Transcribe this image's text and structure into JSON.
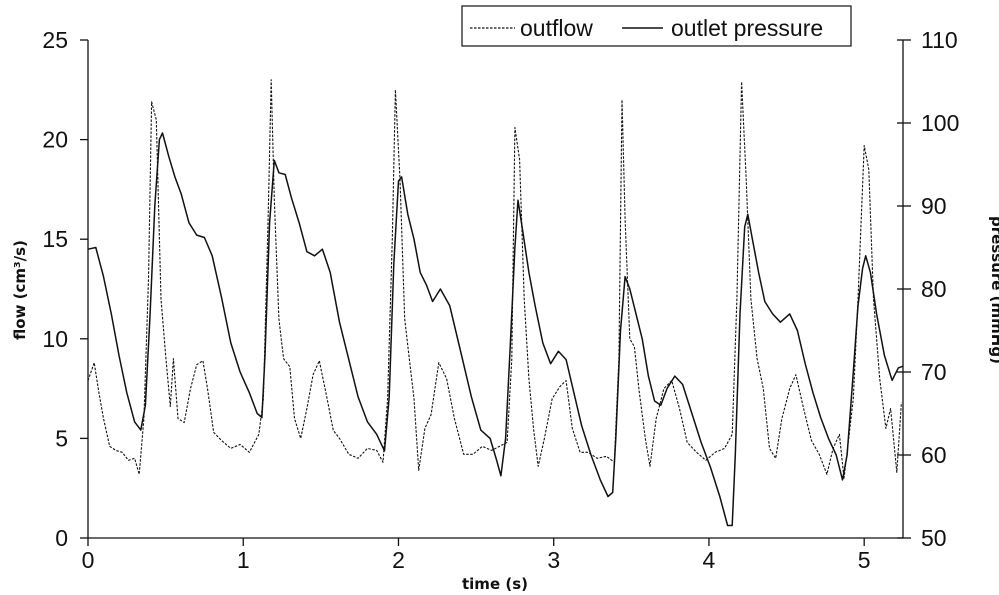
{
  "chart_data": {
    "type": "line",
    "xlabel": "time (s)",
    "ylabel_left": "flow (cm³/s)",
    "ylabel_right": "pressure (mmHg)",
    "xlim": [
      0,
      5.25
    ],
    "ylim_left": [
      0,
      25
    ],
    "ylim_right": [
      50,
      110
    ],
    "x_ticks": [
      "0",
      "1",
      "2",
      "3",
      "4",
      "5"
    ],
    "y_left_ticks": [
      "0",
      "5",
      "10",
      "15",
      "20",
      "25"
    ],
    "y_right_ticks": [
      "50",
      "60",
      "70",
      "80",
      "90",
      "100",
      "110"
    ],
    "grid": false,
    "legend_position": "top-right",
    "series": [
      {
        "name": "outflow",
        "axis": "left",
        "style": "dashed",
        "color": "#111111",
        "points": [
          [
            0.0,
            7.9
          ],
          [
            0.04,
            8.8
          ],
          [
            0.07,
            7.3
          ],
          [
            0.1,
            6.0
          ],
          [
            0.14,
            4.6
          ],
          [
            0.18,
            4.4
          ],
          [
            0.22,
            4.3
          ],
          [
            0.26,
            3.9
          ],
          [
            0.3,
            4.0
          ],
          [
            0.33,
            3.2
          ],
          [
            0.36,
            6.0
          ],
          [
            0.39,
            13.0
          ],
          [
            0.41,
            21.9
          ],
          [
            0.44,
            21.0
          ],
          [
            0.47,
            12.0
          ],
          [
            0.5,
            9.2
          ],
          [
            0.53,
            6.6
          ],
          [
            0.55,
            9.0
          ],
          [
            0.58,
            6.0
          ],
          [
            0.62,
            5.8
          ],
          [
            0.66,
            7.5
          ],
          [
            0.7,
            8.7
          ],
          [
            0.74,
            8.9
          ],
          [
            0.77,
            7.5
          ],
          [
            0.81,
            5.3
          ],
          [
            0.86,
            4.9
          ],
          [
            0.92,
            4.5
          ],
          [
            0.98,
            4.7
          ],
          [
            1.04,
            4.3
          ],
          [
            1.1,
            5.2
          ],
          [
            1.13,
            7.0
          ],
          [
            1.16,
            16.0
          ],
          [
            1.18,
            23.0
          ],
          [
            1.2,
            17.0
          ],
          [
            1.23,
            11.0
          ],
          [
            1.26,
            9.0
          ],
          [
            1.3,
            8.6
          ],
          [
            1.33,
            6.0
          ],
          [
            1.37,
            5.0
          ],
          [
            1.41,
            6.5
          ],
          [
            1.45,
            8.2
          ],
          [
            1.49,
            8.9
          ],
          [
            1.54,
            7.0
          ],
          [
            1.58,
            5.4
          ],
          [
            1.62,
            5.0
          ],
          [
            1.68,
            4.2
          ],
          [
            1.74,
            4.0
          ],
          [
            1.8,
            4.5
          ],
          [
            1.86,
            4.4
          ],
          [
            1.9,
            3.8
          ],
          [
            1.93,
            7.0
          ],
          [
            1.96,
            15.0
          ],
          [
            1.98,
            22.5
          ],
          [
            2.01,
            18.0
          ],
          [
            2.04,
            11.0
          ],
          [
            2.07,
            9.0
          ],
          [
            2.1,
            7.0
          ],
          [
            2.13,
            3.4
          ],
          [
            2.17,
            5.5
          ],
          [
            2.21,
            6.2
          ],
          [
            2.26,
            8.8
          ],
          [
            2.31,
            8.0
          ],
          [
            2.36,
            6.0
          ],
          [
            2.42,
            4.2
          ],
          [
            2.48,
            4.2
          ],
          [
            2.54,
            4.6
          ],
          [
            2.6,
            4.4
          ],
          [
            2.65,
            4.6
          ],
          [
            2.7,
            4.8
          ],
          [
            2.73,
            9.0
          ],
          [
            2.75,
            20.6
          ],
          [
            2.78,
            19.0
          ],
          [
            2.81,
            12.0
          ],
          [
            2.84,
            8.0
          ],
          [
            2.87,
            5.5
          ],
          [
            2.9,
            3.6
          ],
          [
            2.94,
            5.0
          ],
          [
            2.99,
            7.0
          ],
          [
            3.04,
            7.6
          ],
          [
            3.08,
            7.9
          ],
          [
            3.12,
            5.5
          ],
          [
            3.17,
            4.3
          ],
          [
            3.22,
            4.3
          ],
          [
            3.28,
            4.0
          ],
          [
            3.34,
            4.1
          ],
          [
            3.39,
            3.8
          ],
          [
            3.42,
            9.0
          ],
          [
            3.44,
            22.0
          ],
          [
            3.46,
            16.0
          ],
          [
            3.49,
            10.0
          ],
          [
            3.52,
            9.6
          ],
          [
            3.55,
            7.4
          ],
          [
            3.59,
            5.0
          ],
          [
            3.62,
            3.6
          ],
          [
            3.66,
            6.0
          ],
          [
            3.71,
            7.5
          ],
          [
            3.76,
            7.9
          ],
          [
            3.81,
            6.5
          ],
          [
            3.86,
            4.8
          ],
          [
            3.92,
            4.3
          ],
          [
            3.98,
            3.9
          ],
          [
            4.04,
            4.3
          ],
          [
            4.1,
            4.5
          ],
          [
            4.15,
            5.2
          ],
          [
            4.18,
            12.0
          ],
          [
            4.21,
            22.9
          ],
          [
            4.24,
            18.0
          ],
          [
            4.27,
            12.0
          ],
          [
            4.31,
            9.0
          ],
          [
            4.35,
            7.5
          ],
          [
            4.39,
            4.5
          ],
          [
            4.43,
            4.0
          ],
          [
            4.47,
            6.0
          ],
          [
            4.52,
            7.5
          ],
          [
            4.56,
            8.2
          ],
          [
            4.61,
            6.5
          ],
          [
            4.66,
            4.9
          ],
          [
            4.71,
            4.2
          ],
          [
            4.76,
            3.2
          ],
          [
            4.8,
            4.5
          ],
          [
            4.84,
            5.2
          ],
          [
            4.87,
            3.0
          ],
          [
            4.9,
            5.0
          ],
          [
            4.93,
            7.0
          ],
          [
            4.96,
            12.0
          ],
          [
            5.0,
            19.7
          ],
          [
            5.03,
            18.5
          ],
          [
            5.06,
            12.0
          ],
          [
            5.1,
            8.0
          ],
          [
            5.14,
            5.5
          ],
          [
            5.17,
            6.5
          ],
          [
            5.21,
            3.3
          ],
          [
            5.24,
            6.8
          ]
        ]
      },
      {
        "name": "outlet pressure",
        "axis": "right",
        "style": "solid",
        "color": "#111111",
        "points": [
          [
            0.0,
            84.8
          ],
          [
            0.05,
            85.0
          ],
          [
            0.1,
            81.5
          ],
          [
            0.15,
            77.0
          ],
          [
            0.2,
            72.0
          ],
          [
            0.25,
            67.5
          ],
          [
            0.3,
            64.0
          ],
          [
            0.34,
            63.0
          ],
          [
            0.37,
            66.0
          ],
          [
            0.4,
            77.0
          ],
          [
            0.43,
            90.0
          ],
          [
            0.46,
            98.0
          ],
          [
            0.48,
            98.8
          ],
          [
            0.52,
            96.0
          ],
          [
            0.56,
            93.5
          ],
          [
            0.6,
            91.5
          ],
          [
            0.65,
            88.0
          ],
          [
            0.7,
            86.5
          ],
          [
            0.75,
            86.2
          ],
          [
            0.8,
            84.0
          ],
          [
            0.86,
            79.0
          ],
          [
            0.92,
            73.5
          ],
          [
            0.98,
            70.0
          ],
          [
            1.04,
            67.5
          ],
          [
            1.09,
            65.0
          ],
          [
            1.12,
            64.5
          ],
          [
            1.14,
            72.0
          ],
          [
            1.17,
            88.0
          ],
          [
            1.2,
            95.5
          ],
          [
            1.23,
            94.0
          ],
          [
            1.27,
            93.8
          ],
          [
            1.31,
            91.0
          ],
          [
            1.36,
            88.0
          ],
          [
            1.41,
            84.5
          ],
          [
            1.46,
            84.0
          ],
          [
            1.51,
            84.8
          ],
          [
            1.56,
            82.0
          ],
          [
            1.62,
            76.0
          ],
          [
            1.68,
            71.5
          ],
          [
            1.74,
            67.0
          ],
          [
            1.8,
            64.0
          ],
          [
            1.86,
            62.5
          ],
          [
            1.91,
            60.5
          ],
          [
            1.94,
            67.0
          ],
          [
            1.97,
            83.0
          ],
          [
            2.0,
            93.0
          ],
          [
            2.02,
            93.5
          ],
          [
            2.06,
            89.0
          ],
          [
            2.1,
            86.0
          ],
          [
            2.14,
            82.0
          ],
          [
            2.18,
            80.5
          ],
          [
            2.22,
            78.5
          ],
          [
            2.27,
            80.0
          ],
          [
            2.33,
            78.0
          ],
          [
            2.4,
            72.5
          ],
          [
            2.47,
            67.0
          ],
          [
            2.53,
            63.0
          ],
          [
            2.59,
            62.0
          ],
          [
            2.63,
            59.5
          ],
          [
            2.66,
            57.5
          ],
          [
            2.69,
            62.0
          ],
          [
            2.72,
            73.0
          ],
          [
            2.75,
            85.0
          ],
          [
            2.77,
            90.7
          ],
          [
            2.8,
            87.0
          ],
          [
            2.84,
            82.0
          ],
          [
            2.88,
            78.0
          ],
          [
            2.93,
            73.5
          ],
          [
            2.98,
            71.0
          ],
          [
            3.03,
            72.5
          ],
          [
            3.08,
            71.5
          ],
          [
            3.13,
            67.5
          ],
          [
            3.18,
            63.5
          ],
          [
            3.24,
            60.0
          ],
          [
            3.3,
            57.0
          ],
          [
            3.35,
            55.0
          ],
          [
            3.38,
            55.5
          ],
          [
            3.4,
            62.0
          ],
          [
            3.43,
            75.0
          ],
          [
            3.46,
            81.5
          ],
          [
            3.49,
            80.0
          ],
          [
            3.53,
            77.0
          ],
          [
            3.57,
            74.0
          ],
          [
            3.61,
            69.5
          ],
          [
            3.65,
            66.5
          ],
          [
            3.69,
            66.0
          ],
          [
            3.73,
            68.0
          ],
          [
            3.78,
            69.5
          ],
          [
            3.83,
            68.5
          ],
          [
            3.89,
            65.0
          ],
          [
            3.95,
            61.5
          ],
          [
            4.01,
            58.5
          ],
          [
            4.07,
            55.0
          ],
          [
            4.12,
            51.5
          ],
          [
            4.15,
            51.5
          ],
          [
            4.17,
            60.0
          ],
          [
            4.2,
            77.0
          ],
          [
            4.23,
            87.5
          ],
          [
            4.25,
            89.0
          ],
          [
            4.28,
            86.0
          ],
          [
            4.32,
            82.0
          ],
          [
            4.36,
            78.5
          ],
          [
            4.41,
            77.0
          ],
          [
            4.46,
            76.0
          ],
          [
            4.52,
            77.0
          ],
          [
            4.57,
            75.0
          ],
          [
            4.62,
            71.0
          ],
          [
            4.67,
            67.5
          ],
          [
            4.72,
            64.5
          ],
          [
            4.77,
            62.0
          ],
          [
            4.82,
            60.0
          ],
          [
            4.86,
            57.0
          ],
          [
            4.89,
            60.0
          ],
          [
            4.93,
            70.0
          ],
          [
            4.96,
            78.0
          ],
          [
            4.99,
            82.5
          ],
          [
            5.01,
            84.0
          ],
          [
            5.04,
            82.0
          ],
          [
            5.08,
            77.0
          ],
          [
            5.13,
            72.0
          ],
          [
            5.18,
            69.0
          ],
          [
            5.22,
            70.5
          ],
          [
            5.25,
            70.7
          ]
        ]
      }
    ]
  }
}
